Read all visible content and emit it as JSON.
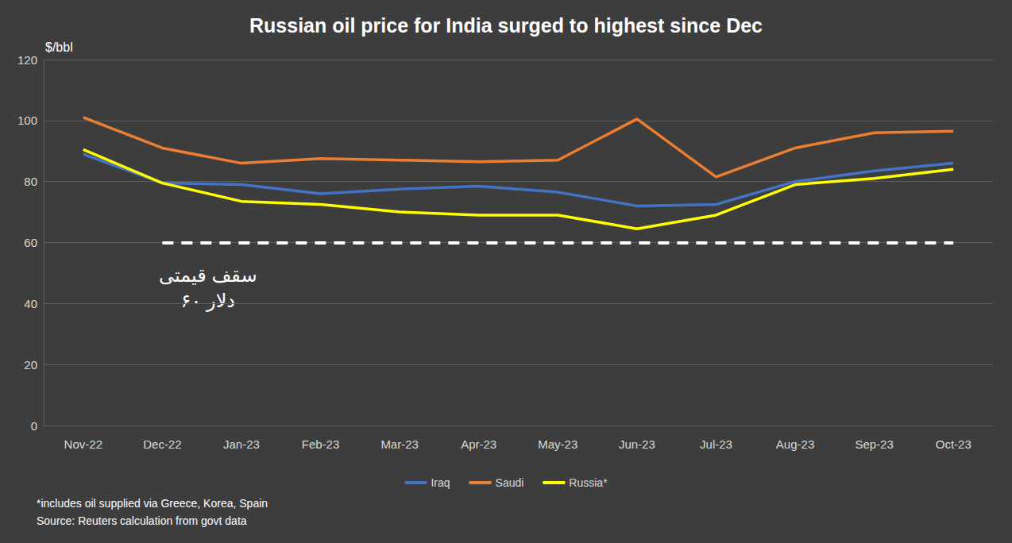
{
  "chart_data": {
    "type": "line",
    "title": "Russian oil price for India surged to highest since Dec",
    "y_label": "$/bbl",
    "categories": [
      "Nov-22",
      "Dec-22",
      "Jan-23",
      "Feb-23",
      "Mar-23",
      "Apr-23",
      "May-23",
      "Jun-23",
      "Jul-23",
      "Aug-23",
      "Sep-23",
      "Oct-23"
    ],
    "series": [
      {
        "name": "Iraq",
        "color": "#4472c4",
        "values": [
          89,
          79.5,
          79,
          76,
          77.5,
          78.5,
          76.5,
          72,
          72.5,
          80,
          83.5,
          86
        ]
      },
      {
        "name": "Saudi",
        "color": "#ed7d31",
        "values": [
          101,
          91,
          86,
          87.5,
          87,
          86.5,
          87,
          100.5,
          81.5,
          91,
          96,
          96.5
        ]
      },
      {
        "name": "Russia*",
        "color": "#ffff00",
        "values": [
          90.5,
          79.5,
          73.5,
          72.5,
          70,
          69,
          69,
          64.5,
          69,
          79,
          81,
          84
        ]
      }
    ],
    "reference_line": {
      "value": 60,
      "from": "Dec-22",
      "to": "Oct-23",
      "color": "#ffffff",
      "line_style": "dashed",
      "label": [
        "سقف قیمتی",
        "۶۰ دلار"
      ]
    },
    "ylim": [
      0,
      120
    ],
    "yticks": [
      0,
      20,
      40,
      60,
      80,
      100,
      120
    ],
    "grid": true,
    "legend": "bottom",
    "notes": [
      "*includes oil supplied via Greece, Korea, Spain",
      "Source: Reuters calculation from govt data"
    ]
  }
}
